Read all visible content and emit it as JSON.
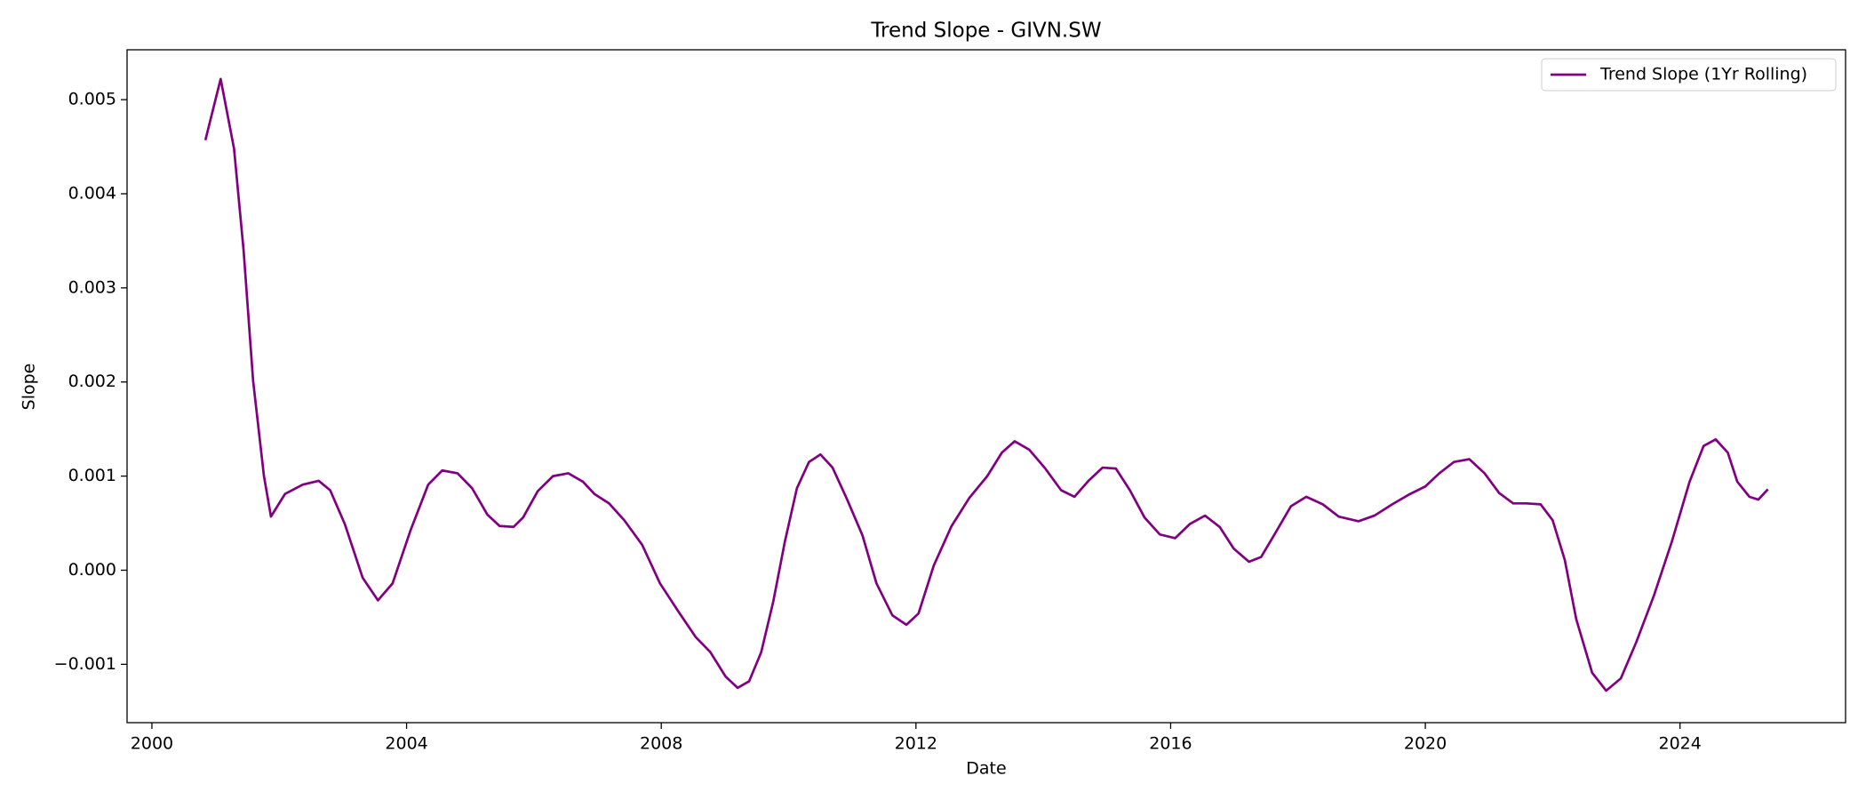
{
  "chart_data": {
    "type": "line",
    "title": "Trend Slope - GIVN.SW",
    "x_label": "Date",
    "y_label": "Slope",
    "x": [
      2000.84,
      2001.08,
      2001.29,
      2001.44,
      2001.59,
      2001.76,
      2001.87,
      2002.09,
      2002.37,
      2002.62,
      2002.8,
      2003.03,
      2003.31,
      2003.55,
      2003.78,
      2004.06,
      2004.34,
      2004.56,
      2004.8,
      2005.03,
      2005.27,
      2005.46,
      2005.68,
      2005.83,
      2006.06,
      2006.3,
      2006.54,
      2006.77,
      2006.95,
      2007.18,
      2007.42,
      2007.7,
      2007.98,
      2008.26,
      2008.54,
      2008.77,
      2009.01,
      2009.2,
      2009.38,
      2009.57,
      2009.76,
      2009.94,
      2010.13,
      2010.32,
      2010.5,
      2010.69,
      2010.92,
      2011.16,
      2011.38,
      2011.63,
      2011.85,
      2012.04,
      2012.28,
      2012.56,
      2012.84,
      2013.12,
      2013.35,
      2013.55,
      2013.78,
      2014.02,
      2014.28,
      2014.49,
      2014.71,
      2014.93,
      2015.14,
      2015.36,
      2015.59,
      2015.83,
      2016.07,
      2016.3,
      2016.54,
      2016.77,
      2016.99,
      2017.23,
      2017.42,
      2017.64,
      2017.89,
      2018.13,
      2018.39,
      2018.64,
      2018.95,
      2019.2,
      2019.48,
      2019.76,
      2020.0,
      2020.22,
      2020.45,
      2020.69,
      2020.93,
      2021.16,
      2021.38,
      2021.59,
      2021.81,
      2022.0,
      2022.19,
      2022.37,
      2022.62,
      2022.84,
      2023.07,
      2023.31,
      2023.59,
      2023.87,
      2024.15,
      2024.37,
      2024.56,
      2024.75,
      2024.9,
      2025.09,
      2025.23,
      2025.38
    ],
    "series": [
      {
        "name": "Trend Slope (1Yr Rolling)",
        "color": "#800080",
        "values": [
          0.00457,
          0.00522,
          0.00448,
          0.0034,
          0.00201,
          0.001,
          0.00057,
          0.00081,
          0.00091,
          0.00095,
          0.00085,
          0.00049,
          -8e-05,
          -0.00032,
          -0.00014,
          0.00042,
          0.00091,
          0.00106,
          0.00103,
          0.00087,
          0.00059,
          0.00047,
          0.00046,
          0.00056,
          0.00084,
          0.001,
          0.00103,
          0.00094,
          0.00081,
          0.00071,
          0.00053,
          0.00027,
          -0.00014,
          -0.00043,
          -0.00071,
          -0.00087,
          -0.00113,
          -0.00125,
          -0.00118,
          -0.00087,
          -0.00033,
          0.0003,
          0.00087,
          0.00115,
          0.00123,
          0.00109,
          0.00075,
          0.00037,
          -0.00014,
          -0.00048,
          -0.00058,
          -0.00046,
          5e-05,
          0.00047,
          0.00077,
          0.001,
          0.00125,
          0.00137,
          0.00128,
          0.00109,
          0.00085,
          0.00078,
          0.00095,
          0.00109,
          0.00108,
          0.00085,
          0.00056,
          0.00038,
          0.00034,
          0.00049,
          0.00058,
          0.00046,
          0.00023,
          9e-05,
          0.00014,
          0.00039,
          0.00068,
          0.00078,
          0.0007,
          0.00057,
          0.00052,
          0.00058,
          0.0007,
          0.00081,
          0.00089,
          0.00103,
          0.00115,
          0.00118,
          0.00103,
          0.00082,
          0.00071,
          0.00071,
          0.0007,
          0.00053,
          0.00011,
          -0.00052,
          -0.00109,
          -0.00128,
          -0.00115,
          -0.00077,
          -0.00027,
          0.0003,
          0.00094,
          0.00132,
          0.00139,
          0.00125,
          0.00094,
          0.00078,
          0.00075,
          0.00086
        ]
      }
    ],
    "xlim": [
      1999.61,
      2026.6
    ],
    "xticks": [
      2000,
      2004,
      2008,
      2012,
      2016,
      2020,
      2024
    ],
    "ylim": [
      -0.00162,
      0.00553
    ],
    "yticks": [
      {
        "value": -0.001,
        "label": "−0.001"
      },
      {
        "value": 0,
        "label": "0.000"
      },
      0.001,
      0.002,
      0.003,
      0.004,
      0.005
    ],
    "legend": "upper right",
    "grid": false
  }
}
